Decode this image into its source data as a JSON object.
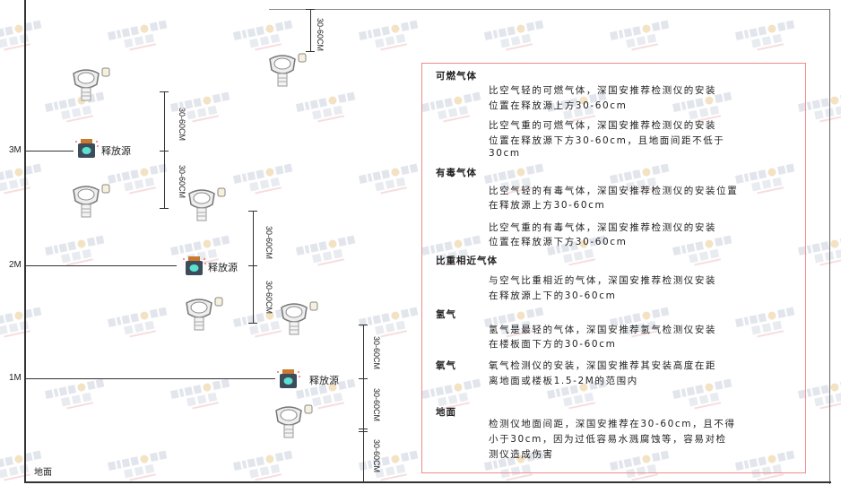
{
  "watermark": {
    "brand": "SINGOAN",
    "cn": "深国安"
  },
  "levels": {
    "m3": "3M",
    "m2": "2M",
    "m1": "1M",
    "ground": "地面"
  },
  "source_label": "释放源",
  "dimension_label": "30-60CM",
  "icons": {
    "detector": "gas-detector-icon",
    "source": "gas-release-source-icon"
  },
  "notes": {
    "combustible": {
      "title": "可燃气体",
      "lighter": [
        "比空气轻的可燃气体，深国安推荐检测仪的安装",
        "位置在释放源上方30-60cm"
      ],
      "heavier": [
        "比空气重的可燃气体，深国安推荐检测仪的安装",
        "位置在释放源下方30-60cm，且地面间距不低于",
        "30cm"
      ]
    },
    "toxic": {
      "title": "有毒气体",
      "lighter": [
        "比空气轻的有毒气体，深国安推荐检测仪的安装位置",
        "在释放源上方30-60cm"
      ],
      "heavier": [
        "比空气重的有毒气体，深国安推荐检测仪的安装",
        "位置在释放源下方30-60cm"
      ]
    },
    "similar": {
      "title": "比重相近气体",
      "lines": [
        "与空气比重相近的气体，深国安推荐检测仪安装",
        "在释放源上下的30-60cm"
      ]
    },
    "hydrogen": {
      "title": "氢气",
      "lines": [
        "氢气是最轻的气体，深国安推荐氢气检测仪安装",
        "在楼板面下方的30-60cm"
      ]
    },
    "oxygen": {
      "title": "氧气",
      "lines": [
        "氧气检测仪的安装，深国安推荐其安装高度在距",
        "离地面或楼板1.5-2M的范围内"
      ]
    },
    "ground": {
      "title": "地面",
      "lines": [
        "检测仪地面间距，深国安推荐在30-60cm，且不得",
        "小于30cm，因为过低容易水溅腐蚀等，容易对检",
        "测仪造成伤害"
      ]
    }
  },
  "colors": {
    "box_border": "#f08a8a",
    "line": "#333333"
  }
}
